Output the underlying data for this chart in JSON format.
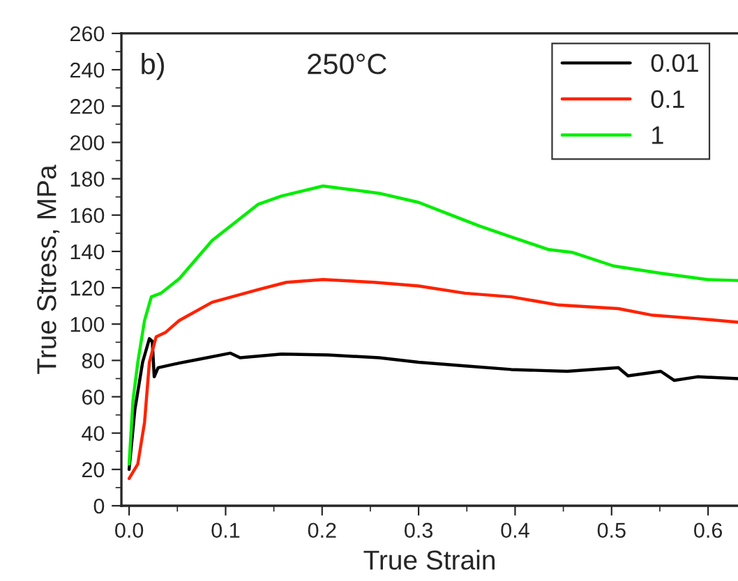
{
  "chart_data": {
    "type": "line",
    "xlabel": "True Strain",
    "ylabel": "True Stress, MPa",
    "annotations": [
      "b)",
      "250°C"
    ],
    "series": [
      {
        "name": "0.01",
        "color": "#000000",
        "x": [
          0,
          0.006,
          0.014,
          0.021,
          0.024,
          0.026,
          0.03,
          0.047,
          0.076,
          0.105,
          0.115,
          0.158,
          0.206,
          0.259,
          0.3,
          0.348,
          0.396,
          0.454,
          0.507,
          0.517,
          0.551,
          0.565,
          0.589,
          0.631
        ],
        "values": [
          20,
          53,
          79,
          92,
          90.5,
          71,
          76,
          78,
          81,
          84,
          81.5,
          83.5,
          83,
          81.5,
          79,
          77,
          75,
          74,
          76,
          71.5,
          74,
          69,
          71,
          70
        ]
      },
      {
        "name": "0.1",
        "color": "#ff2200",
        "x": [
          0,
          0.009,
          0.016,
          0.021,
          0.028,
          0.038,
          0.052,
          0.086,
          0.134,
          0.163,
          0.201,
          0.254,
          0.3,
          0.348,
          0.396,
          0.445,
          0.507,
          0.541,
          0.589,
          0.631
        ],
        "values": [
          15,
          23,
          46,
          79,
          93,
          95.5,
          102,
          112,
          119,
          123,
          124.5,
          123,
          121,
          117,
          115,
          110.5,
          108.5,
          105,
          103,
          101
        ]
      },
      {
        "name": "1",
        "color": "#00ee00",
        "x": [
          0,
          0.004,
          0.009,
          0.016,
          0.023,
          0.033,
          0.052,
          0.086,
          0.134,
          0.158,
          0.201,
          0.23,
          0.259,
          0.3,
          0.329,
          0.363,
          0.396,
          0.435,
          0.459,
          0.502,
          0.551,
          0.599,
          0.631
        ],
        "values": [
          23,
          58,
          79,
          102,
          115,
          117,
          125,
          146,
          166,
          170.5,
          176,
          174,
          172,
          167,
          161,
          154,
          148,
          141,
          139.5,
          132,
          128,
          124.5,
          124
        ]
      }
    ],
    "xlim": [
      -0.008,
      0.631
    ],
    "xticks": [
      {
        "value": 0,
        "label": "0.0"
      },
      0.1,
      0.2,
      0.3,
      0.4,
      0.5,
      0.6
    ],
    "ylim": [
      0,
      260
    ],
    "yticks": [
      0,
      20,
      40,
      60,
      80,
      100,
      120,
      140,
      160,
      180,
      200,
      220,
      240,
      260
    ],
    "legend": "top right",
    "grid": false,
    "line_style": "solid",
    "marker": "none"
  }
}
